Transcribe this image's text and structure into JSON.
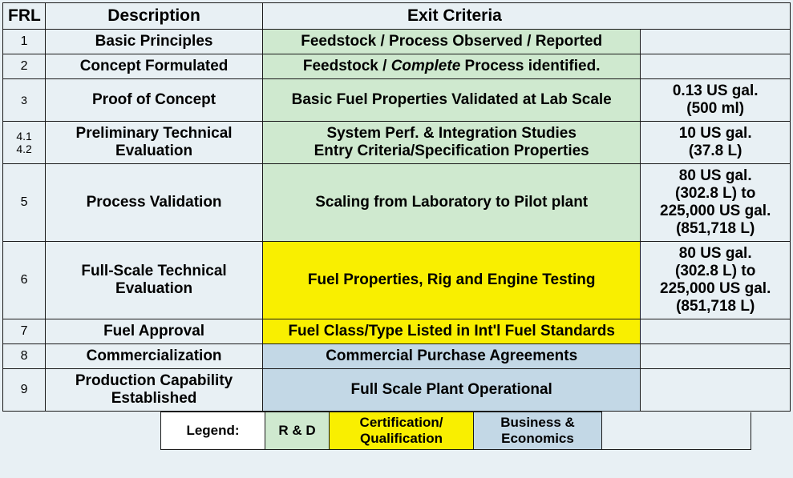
{
  "headers": {
    "frl": "FRL",
    "desc": "Description",
    "exit": "Exit Criteria"
  },
  "rows": [
    {
      "frl": "1",
      "frlSmall": false,
      "desc": "Basic Principles",
      "exit": "Feedstock / Process Observed / Reported",
      "exitHtml": null,
      "vol": "",
      "exitBg": "bg-green"
    },
    {
      "frl": "2",
      "frlSmall": false,
      "desc": "Concept Formulated",
      "exit": "",
      "exitHtml": "Feedstock / <span class=\"ital\">Complete</span> Process identified.",
      "vol": "",
      "exitBg": "bg-green"
    },
    {
      "frl": "3",
      "frlSmall": true,
      "desc": "Proof of Concept",
      "exit": "Basic Fuel Properties Validated at Lab Scale",
      "exitHtml": null,
      "vol": "0.13 US gal.\n(500 ml)",
      "exitBg": "bg-green"
    },
    {
      "frl": "4.1\n4.2",
      "frlSmall": true,
      "desc": "Preliminary Technical\nEvaluation",
      "exit": "System Perf. & Integration Studies\nEntry Criteria/Specification Properties",
      "exitHtml": null,
      "vol": "10 US gal.\n(37.8 L)",
      "exitBg": "bg-green"
    },
    {
      "frl": "5",
      "frlSmall": false,
      "desc": "Process Validation",
      "exit": "Scaling from Laboratory to Pilot plant",
      "exitHtml": null,
      "vol": "80 US gal.\n(302.8 L) to\n225,000 US gal.\n(851,718 L)",
      "exitBg": "bg-green"
    },
    {
      "frl": "6",
      "frlSmall": false,
      "desc": "Full-Scale Technical\nEvaluation",
      "exit": "Fuel Properties, Rig and Engine Testing",
      "exitHtml": null,
      "vol": "80 US gal.\n(302.8 L) to\n225,000 US gal.\n(851,718 L)",
      "exitBg": "bg-yellow"
    },
    {
      "frl": "7",
      "frlSmall": false,
      "desc": "Fuel Approval",
      "exit": "Fuel Class/Type Listed in Int'l Fuel Standards",
      "exitHtml": null,
      "vol": "",
      "exitBg": "bg-yellow"
    },
    {
      "frl": "8",
      "frlSmall": false,
      "desc": "Commercialization",
      "exit": "Commercial Purchase Agreements",
      "exitHtml": null,
      "vol": "",
      "exitBg": "bg-blue"
    },
    {
      "frl": "9",
      "frlSmall": false,
      "desc": "Production Capability\nEstablished",
      "exit": "Full Scale Plant Operational",
      "exitHtml": null,
      "vol": "",
      "exitBg": "bg-blue"
    }
  ],
  "legend": {
    "label": "Legend:",
    "rd": "R & D",
    "cert": "Certification/\nQualification",
    "biz": "Business &\nEconomics"
  },
  "colors": {
    "green": "#cfe9cf",
    "yellow": "#f9ef00",
    "blue": "#c3d8e6",
    "base": "#e8f0f4",
    "border": "#1a1a1a"
  }
}
